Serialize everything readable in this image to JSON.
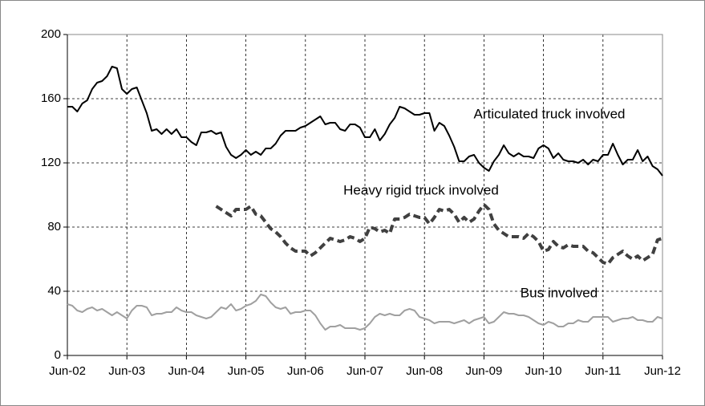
{
  "chart_data": {
    "type": "line",
    "categories": [
      "Jun-02",
      null,
      null,
      null,
      null,
      null,
      null,
      null,
      null,
      null,
      null,
      null,
      "Jun-03",
      null,
      null,
      null,
      null,
      null,
      null,
      null,
      null,
      null,
      null,
      null,
      "Jun-04",
      null,
      null,
      null,
      null,
      null,
      null,
      null,
      null,
      null,
      null,
      null,
      "Jun-05",
      null,
      null,
      null,
      null,
      null,
      null,
      null,
      null,
      null,
      null,
      null,
      "Jun-06",
      null,
      null,
      null,
      null,
      null,
      null,
      null,
      null,
      null,
      null,
      null,
      "Jun-07",
      null,
      null,
      null,
      null,
      null,
      null,
      null,
      null,
      null,
      null,
      null,
      "Jun-08",
      null,
      null,
      null,
      null,
      null,
      null,
      null,
      null,
      null,
      null,
      null,
      "Jun-09",
      null,
      null,
      null,
      null,
      null,
      null,
      null,
      null,
      null,
      null,
      null,
      "Jun-10",
      null,
      null,
      null,
      null,
      null,
      null,
      null,
      null,
      null,
      null,
      null,
      "Jun-11",
      null,
      null,
      null,
      null,
      null,
      null,
      null,
      null,
      null,
      null,
      null,
      "Jun-12"
    ],
    "series": [
      {
        "name": "Articulated truck involved",
        "color": "#000000",
        "style": "solid",
        "values": [
          155,
          155,
          152,
          157,
          159,
          166,
          170,
          171,
          174,
          180,
          179,
          166,
          163,
          166,
          167,
          159,
          151,
          140,
          141,
          138,
          141,
          138,
          141,
          136,
          136,
          133,
          131,
          139,
          139,
          140,
          138,
          139,
          130,
          125,
          123,
          125,
          128,
          125,
          127,
          125,
          129,
          129,
          132,
          137,
          140,
          140,
          140,
          142,
          143,
          145,
          147,
          149,
          144,
          145,
          145,
          141,
          140,
          144,
          144,
          142,
          136,
          136,
          141,
          134,
          138,
          144,
          148,
          155,
          154,
          152,
          150,
          150,
          151,
          151,
          140,
          145,
          143,
          137,
          130,
          121,
          121,
          124,
          125,
          120,
          117,
          115,
          121,
          125,
          131,
          126,
          124,
          126,
          124,
          124,
          123,
          129,
          131,
          129,
          123,
          126,
          122,
          121,
          121,
          120,
          122,
          119,
          122,
          121,
          125,
          125,
          132,
          125,
          119,
          122,
          122,
          128,
          121,
          124,
          118,
          116,
          112
        ]
      },
      {
        "name": "Heavy rigid truck involved",
        "color": "#404040",
        "style": "dashed",
        "values": [
          null,
          null,
          null,
          null,
          null,
          null,
          null,
          null,
          null,
          null,
          null,
          null,
          null,
          null,
          null,
          null,
          null,
          null,
          null,
          null,
          null,
          null,
          null,
          null,
          null,
          null,
          null,
          null,
          null,
          null,
          93,
          91,
          89,
          87,
          91,
          91,
          91,
          93,
          88,
          87,
          83,
          79,
          77,
          74,
          70,
          67,
          65,
          65,
          65,
          62,
          64,
          67,
          70,
          73,
          72,
          71,
          72,
          74,
          73,
          71,
          73,
          80,
          79,
          77,
          78,
          76,
          85,
          85,
          86,
          88,
          87,
          86,
          86,
          82,
          86,
          91,
          90,
          91,
          88,
          83,
          86,
          83,
          85,
          90,
          94,
          91,
          82,
          78,
          76,
          74,
          74,
          74,
          73,
          76,
          74,
          71,
          65,
          66,
          71,
          68,
          67,
          69,
          68,
          68,
          68,
          65,
          64,
          61,
          58,
          57,
          61,
          63,
          65,
          62,
          60,
          62,
          59,
          61,
          63,
          72,
          73
        ]
      },
      {
        "name": "Bus involved",
        "color": "#a0a0a0",
        "style": "solid",
        "values": [
          32,
          31,
          28,
          27,
          29,
          30,
          28,
          29,
          27,
          25,
          27,
          25,
          23,
          28,
          31,
          31,
          30,
          25,
          26,
          26,
          27,
          27,
          30,
          28,
          27,
          27,
          25,
          24,
          23,
          24,
          27,
          30,
          29,
          32,
          28,
          29,
          31,
          32,
          34,
          38,
          37,
          33,
          30,
          29,
          30,
          26,
          27,
          27,
          28,
          28,
          25,
          20,
          16,
          18,
          18,
          19,
          17,
          17,
          17,
          16,
          17,
          20,
          24,
          26,
          25,
          26,
          25,
          25,
          28,
          29,
          28,
          24,
          23,
          22,
          20,
          21,
          21,
          21,
          20,
          21,
          22,
          20,
          22,
          23,
          24,
          20,
          21,
          24,
          27,
          26,
          26,
          25,
          25,
          24,
          22,
          20,
          19,
          21,
          20,
          18,
          18,
          20,
          20,
          22,
          21,
          21,
          24,
          24,
          24,
          24,
          21,
          22,
          23,
          23,
          24,
          22,
          22,
          21,
          21,
          24,
          23
        ]
      }
    ],
    "ylim": [
      0,
      200
    ],
    "yticks": [
      0,
      40,
      80,
      120,
      160,
      200
    ],
    "grid": true
  }
}
